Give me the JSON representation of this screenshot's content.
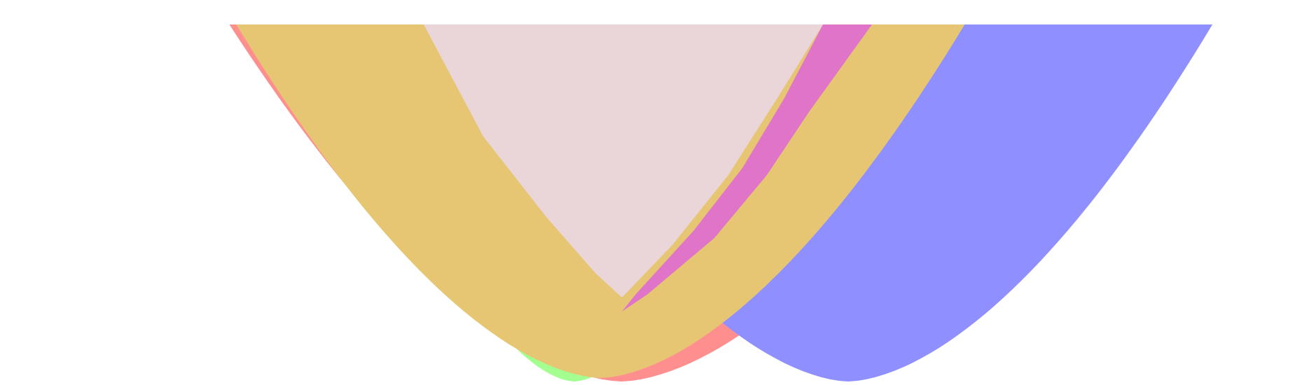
{
  "chart_data": {
    "type": "area",
    "title": "",
    "xlabel": "",
    "ylabel": "",
    "grid": false,
    "legend": "none",
    "xlim": [
      -1,
      1
    ],
    "ylim": [
      0,
      1
    ],
    "series": [
      {
        "color": "#a3ff8f",
        "values": {
          "left": [
            -0.86,
            1.0
          ],
          "bottom": [
            -0.09,
            0.0
          ],
          "right_end": [
            0.15,
            1.0
          ],
          "note_shape": "parabola"
        }
      },
      {
        "color": "#ff8f8f",
        "values": {
          "left": [
            -0.78,
            1.0
          ],
          "bottom": [
            0.0,
            0.0
          ],
          "right_end": [
            0.25,
            1.0
          ]
        }
      },
      {
        "color": "#e8d0d4",
        "values": {
          "left": [
            -0.37,
            1.0
          ],
          "bottom": [
            0.12,
            0.23
          ],
          "right_end": [
            0.22,
            1.0
          ]
        }
      },
      {
        "color": "#8f8fff",
        "values": {
          "left": [
            0.35,
            1.0
          ],
          "bottom": [
            0.43,
            0.0
          ],
          "right_end": [
            0.87,
            1.0
          ]
        }
      }
    ]
  }
}
